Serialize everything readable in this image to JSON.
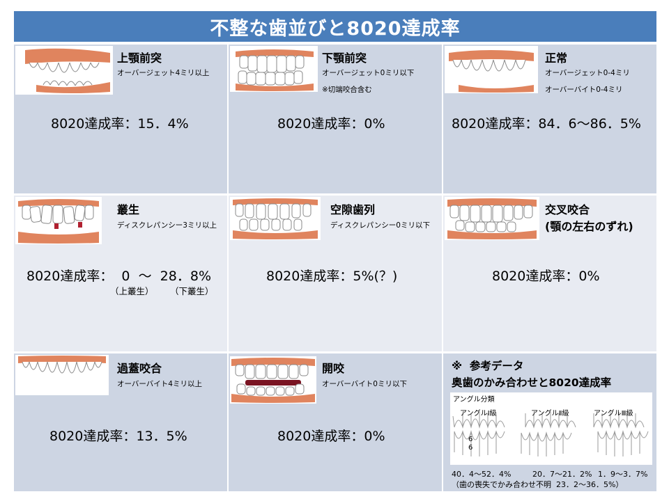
{
  "title": "不整な歯並びと8020達成率",
  "cells": [
    {
      "name": "上顎前突",
      "sub1": "オーバージェット4ミリ以上",
      "sub2": "",
      "rate": "8020達成率：15．4%"
    },
    {
      "name": "下顎前突",
      "sub1": "オーバージェット0ミリ以下",
      "sub2": "※切端咬合含む",
      "rate": "8020達成率：0%"
    },
    {
      "name": "正常",
      "sub1": "オーバージェット0-4ミリ",
      "sub2": "オーバーバイト0-4ミリ",
      "rate": "8020達成率：84．6～86．5%"
    },
    {
      "name": "叢生",
      "sub1": "ディスクレパンシー3ミリ以上",
      "sub2": "",
      "rate": "8020達成率：  0  ～  28．8%",
      "notes": [
        "（上叢生）",
        "（下叢生）"
      ]
    },
    {
      "name": "空隙歯列",
      "sub1": "ディスクレパンシー0ミリ以下",
      "sub2": "",
      "rate": "8020達成率：5%(？)"
    },
    {
      "name": "交叉咬合",
      "name2": "(顎の左右のずれ)",
      "sub1": "",
      "sub2": "",
      "rate": "8020達成率：0%"
    },
    {
      "name": "過蓋咬合",
      "sub1": "オーバーバイト4ミリ以上",
      "sub2": "",
      "rate": "8020達成率：13．5%"
    },
    {
      "name": "開咬",
      "sub1": "オーバーバイト0ミリ以下",
      "sub2": "",
      "rate": "8020達成率：0%"
    }
  ],
  "reference": {
    "heading1": "※  参考データ",
    "heading2": "奥歯のかみ合わせと8020達成率",
    "classification_label": "アングル分類",
    "class_labels": [
      "アングルⅠ級",
      "アングルⅡ級",
      "アングルⅢ級"
    ],
    "tooth_numbers": [
      "6",
      "6"
    ],
    "stats": [
      "40．4～52．4%",
      "20．7～21．2%",
      "1．9～3．7%"
    ],
    "footnote": "（歯の喪失でかみ合わせ不明  23．2～36．5%）"
  },
  "colors": {
    "title_bar": "#4a7ebb",
    "cell_dark": "#cdd5e3",
    "cell_light": "#e8ebf2",
    "gum": "#e0845e",
    "tooth": "#ffffff"
  }
}
